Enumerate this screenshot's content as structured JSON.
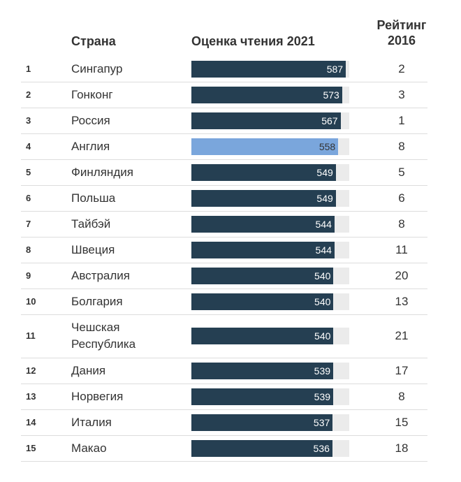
{
  "headers": {
    "country": "Страна",
    "score": "Оценка чтения 2021",
    "rank_line1": "Рейтинг",
    "rank_line2": "2016"
  },
  "colors": {
    "bar": "#253f52",
    "highlight": "#7aa6dc",
    "track": "#ebebeb"
  },
  "chart_data": {
    "type": "table",
    "bar_range": [
      0,
      600
    ],
    "columns": [
      "",
      "Страна",
      "Оценка чтения 2021",
      "Рейтинг 2016"
    ],
    "rows": [
      {
        "num": "1",
        "country": "Сингапур",
        "score": 587,
        "score_label": "587",
        "rank": "2"
      },
      {
        "num": "2",
        "country": "Гонконг",
        "score": 573,
        "score_label": "573",
        "rank": "3"
      },
      {
        "num": "3",
        "country": "Россия",
        "score": 567,
        "score_label": "567",
        "rank": "1"
      },
      {
        "num": "4",
        "country": "Англия",
        "score": 558,
        "score_label": "558",
        "rank": "8",
        "highlight": true
      },
      {
        "num": "5",
        "country": "Финляндия",
        "score": 549,
        "score_label": "549",
        "rank": "5"
      },
      {
        "num": "6",
        "country": "Польша",
        "score": 549,
        "score_label": "549",
        "rank": "6"
      },
      {
        "num": "7",
        "country": "Тайбэй",
        "score": 544,
        "score_label": "544",
        "rank": "8"
      },
      {
        "num": "8",
        "country": "Швеция",
        "score": 544,
        "score_label": "544",
        "rank": "11"
      },
      {
        "num": "9",
        "country": "Австралия",
        "score": 540,
        "score_label": "540",
        "rank": "20"
      },
      {
        "num": "10",
        "country": "Болгария",
        "score": 540,
        "score_label": "540",
        "rank": "13"
      },
      {
        "num": "11",
        "country": "Чешская Республика",
        "score": 540,
        "score_label": "540",
        "rank": "21"
      },
      {
        "num": "12",
        "country": "Дания",
        "score": 539,
        "score_label": "539",
        "rank": "17"
      },
      {
        "num": "13",
        "country": "Норвегия",
        "score": 539,
        "score_label": "539",
        "rank": "8"
      },
      {
        "num": "14",
        "country": "Италия",
        "score": 537,
        "score_label": "537",
        "rank": "15"
      },
      {
        "num": "15",
        "country": "Макао",
        "score": 536,
        "score_label": "536",
        "rank": "18"
      }
    ]
  }
}
